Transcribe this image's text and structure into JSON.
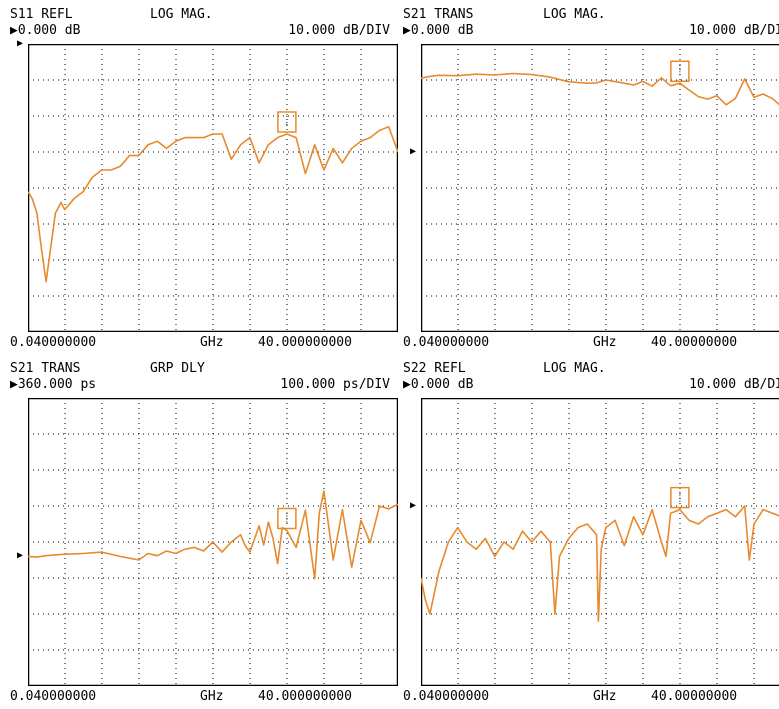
{
  "colors": {
    "trace": "#e88a2c",
    "grid": "#000000",
    "frame": "#000000",
    "background": "#ffffff"
  },
  "chart_data": [
    {
      "type": "line",
      "measurement": "S11 REFL",
      "format": "LOG MAG.",
      "reference": "0.000 dB",
      "scale": "10.000 dB/DIV",
      "start": "0.040000000",
      "unit": "GHz",
      "stop": "40.000000000",
      "grid_divisions": {
        "x": 10,
        "y": 8
      },
      "ylim": [
        -80,
        0
      ],
      "xlim": [
        0.04,
        40
      ],
      "reference_marker_y": 0,
      "marker_x": 28,
      "x": [
        0.04,
        0.5,
        1,
        1.5,
        2,
        3,
        3.6,
        4,
        5,
        6,
        7,
        8,
        9,
        10,
        11,
        12,
        13,
        14,
        15,
        16,
        17,
        18,
        19,
        20,
        21,
        22,
        23,
        24,
        25,
        26,
        27,
        28,
        29,
        30,
        31,
        32,
        33,
        34,
        35,
        36,
        37,
        38,
        39,
        40
      ],
      "values": [
        -41,
        -43,
        -47,
        -57,
        -66,
        -47,
        -44,
        -46,
        -43,
        -41,
        -37,
        -35,
        -35,
        -34,
        -31,
        -31,
        -28,
        -27,
        -29,
        -27,
        -26,
        -26,
        -26,
        -25,
        -25,
        -32,
        -28,
        -26,
        -33,
        -28,
        -26,
        -25,
        -26,
        -36,
        -28,
        -35,
        -29,
        -33,
        -29,
        -27,
        -26,
        -24,
        -23,
        -30
      ]
    },
    {
      "type": "line",
      "measurement": "S21 TRANS",
      "format": "LOG MAG.",
      "reference": "0.000 dB",
      "scale": "10.000 dB/DI",
      "start": "0.040000000",
      "unit": "GHz",
      "stop": "40.00000000",
      "grid_divisions": {
        "x": 10,
        "y": 8
      },
      "ylim": [
        -50,
        30
      ],
      "xlim": [
        0.04,
        40
      ],
      "reference_marker_y": 0,
      "marker_x": 28,
      "x": [
        0.04,
        1,
        2,
        4,
        6,
        8,
        10,
        12,
        14,
        16,
        18,
        19,
        20,
        22,
        23,
        24,
        25,
        26,
        27,
        28,
        29,
        30,
        31,
        32,
        33,
        34,
        35,
        36,
        37,
        38,
        39,
        40
      ],
      "values": [
        20.5,
        21,
        21.3,
        21.2,
        21.6,
        21.4,
        21.8,
        21.5,
        20.8,
        19.5,
        19.1,
        19.2,
        20,
        19.1,
        18.6,
        19.6,
        18.3,
        20.6,
        18.4,
        19.1,
        17.2,
        15.4,
        14.7,
        15.6,
        13.1,
        14.9,
        20.3,
        15.2,
        16.1,
        14.8,
        12.6,
        13.8
      ]
    },
    {
      "type": "line",
      "measurement": "S21 TRANS",
      "format": "GRP DLY",
      "reference": "360.000 ps",
      "scale": "100.000 ps/DIV",
      "start": "0.040000000",
      "unit": "GHz",
      "stop": "40.000000000",
      "grid_divisions": {
        "x": 10,
        "y": 8
      },
      "ylim": [
        0,
        800
      ],
      "xlim": [
        0.04,
        40
      ],
      "reference_marker_y": 360,
      "marker_x": 28,
      "x": [
        0.04,
        1,
        2,
        4,
        6,
        8,
        10,
        12,
        13,
        14,
        15,
        16,
        17,
        18,
        19,
        20,
        21,
        22,
        23,
        23.5,
        24,
        25,
        25.5,
        26,
        26.5,
        27,
        27.5,
        28,
        29,
        30,
        31,
        31.5,
        32,
        33,
        34,
        35,
        36,
        37,
        38,
        39,
        40
      ],
      "values": [
        360,
        358,
        362,
        366,
        368,
        372,
        360,
        350,
        368,
        362,
        375,
        368,
        380,
        385,
        375,
        400,
        372,
        400,
        420,
        390,
        372,
        445,
        392,
        455,
        410,
        340,
        440,
        432,
        385,
        488,
        298,
        480,
        542,
        350,
        490,
        330,
        460,
        398,
        500,
        492,
        505
      ]
    },
    {
      "type": "line",
      "measurement": "S22 REFL",
      "format": "LOG MAG.",
      "reference": "0.000 dB",
      "scale": "10.000 dB/DI",
      "start": "0.040000000",
      "unit": "GHz",
      "stop": "40.00000000",
      "grid_divisions": {
        "x": 10,
        "y": 8
      },
      "ylim": [
        -50,
        30
      ],
      "xlim": [
        0.04,
        40
      ],
      "reference_marker_y": 0,
      "marker_x": 28,
      "x": [
        0.04,
        0.5,
        1,
        2,
        3,
        4,
        5,
        6,
        7,
        8,
        9,
        10,
        11,
        12,
        13,
        14,
        14.5,
        15,
        16,
        17,
        18,
        19,
        19.2,
        19.5,
        20,
        21,
        22,
        23,
        24,
        25,
        26,
        26.5,
        27,
        28,
        29,
        30,
        31,
        32,
        33,
        34,
        35,
        35.5,
        36,
        37,
        38,
        39,
        40
      ],
      "values": [
        -20,
        -26,
        -30,
        -18,
        -10,
        -6,
        -10,
        -12,
        -9,
        -14,
        -10,
        -12,
        -7,
        -10,
        -7,
        -10,
        -30,
        -14,
        -9,
        -6,
        -5,
        -8,
        -32,
        -12,
        -6,
        -4,
        -11,
        -3,
        -8,
        -1,
        -10,
        -14,
        -2,
        -1,
        -4,
        -5,
        -3,
        -2,
        -1,
        -3,
        0,
        -15,
        -5,
        -1,
        -2,
        -3,
        -2
      ]
    }
  ]
}
